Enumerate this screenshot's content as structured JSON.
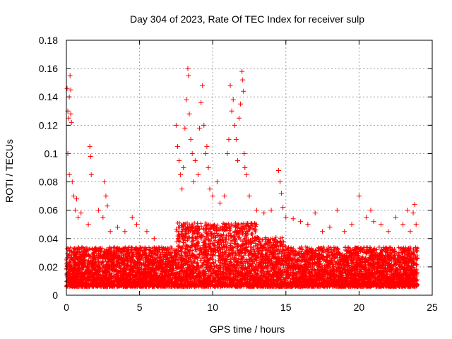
{
  "chart_data": {
    "type": "scatter",
    "title": "Day 304 of 2023, Rate Of TEC Index for receiver sulp",
    "xlabel": "GPS time / hours",
    "ylabel": "ROTI / TECUs",
    "xlim": [
      0,
      25
    ],
    "ylim": [
      0,
      0.18
    ],
    "x_ticks": [
      0,
      5,
      10,
      15,
      20,
      25
    ],
    "y_ticks": [
      0,
      0.02,
      0.04,
      0.06,
      0.08,
      0.1,
      0.12,
      0.14,
      0.16,
      0.18
    ],
    "x_tick_labels": [
      "0",
      "5",
      "10",
      "15",
      "20",
      "25"
    ],
    "y_tick_labels": [
      "0",
      "0.02",
      "0.04",
      "0.06",
      "0.08",
      "0.1",
      "0.12",
      "0.14",
      "0.16",
      "0.18"
    ],
    "grid": true,
    "marker": "+",
    "color": "#ff0000",
    "series": [
      {
        "points": [
          [
            0.05,
            0.146
          ],
          [
            0.1,
            0.13
          ],
          [
            0.15,
            0.125
          ],
          [
            0.2,
            0.14
          ],
          [
            0.25,
            0.155
          ],
          [
            0.3,
            0.145
          ],
          [
            0.3,
            0.128
          ],
          [
            0.35,
            0.122
          ],
          [
            0.1,
            0.1
          ],
          [
            0.2,
            0.085
          ],
          [
            0.4,
            0.08
          ],
          [
            0.5,
            0.07
          ],
          [
            0.6,
            0.06
          ],
          [
            0.7,
            0.068
          ],
          [
            0.8,
            0.055
          ],
          [
            1.0,
            0.058
          ],
          [
            1.6,
            0.105
          ],
          [
            1.65,
            0.098
          ],
          [
            1.7,
            0.085
          ],
          [
            1.5,
            0.05
          ],
          [
            2.2,
            0.06
          ],
          [
            2.5,
            0.055
          ],
          [
            2.6,
            0.08
          ],
          [
            2.7,
            0.07
          ],
          [
            2.8,
            0.063
          ],
          [
            3.0,
            0.045
          ],
          [
            3.5,
            0.048
          ],
          [
            4.0,
            0.045
          ],
          [
            4.5,
            0.055
          ],
          [
            4.8,
            0.05
          ],
          [
            5.5,
            0.045
          ],
          [
            6.0,
            0.04
          ],
          [
            7.5,
            0.12
          ],
          [
            7.6,
            0.105
          ],
          [
            7.7,
            0.095
          ],
          [
            7.8,
            0.085
          ],
          [
            7.9,
            0.075
          ],
          [
            8.0,
            0.09
          ],
          [
            8.1,
            0.118
          ],
          [
            8.2,
            0.138
          ],
          [
            8.3,
            0.16
          ],
          [
            8.35,
            0.155
          ],
          [
            8.4,
            0.128
          ],
          [
            8.5,
            0.11
          ],
          [
            8.6,
            0.1
          ],
          [
            8.7,
            0.08
          ],
          [
            8.8,
            0.095
          ],
          [
            9.0,
            0.085
          ],
          [
            9.1,
            0.118
          ],
          [
            9.2,
            0.136
          ],
          [
            9.3,
            0.148
          ],
          [
            9.4,
            0.12
          ],
          [
            9.5,
            0.1
          ],
          [
            9.6,
            0.105
          ],
          [
            9.7,
            0.09
          ],
          [
            9.8,
            0.075
          ],
          [
            10.0,
            0.07
          ],
          [
            10.3,
            0.08
          ],
          [
            10.5,
            0.065
          ],
          [
            10.8,
            0.07
          ],
          [
            11.0,
            0.1
          ],
          [
            11.1,
            0.11
          ],
          [
            11.2,
            0.148
          ],
          [
            11.3,
            0.13
          ],
          [
            11.4,
            0.138
          ],
          [
            11.5,
            0.12
          ],
          [
            11.6,
            0.11
          ],
          [
            11.7,
            0.095
          ],
          [
            11.8,
            0.125
          ],
          [
            11.9,
            0.135
          ],
          [
            12.0,
            0.158
          ],
          [
            12.05,
            0.152
          ],
          [
            12.1,
            0.144
          ],
          [
            12.15,
            0.1
          ],
          [
            12.2,
            0.09
          ],
          [
            12.3,
            0.085
          ],
          [
            12.5,
            0.07
          ],
          [
            13.0,
            0.06
          ],
          [
            13.5,
            0.058
          ],
          [
            14.0,
            0.06
          ],
          [
            14.5,
            0.088
          ],
          [
            14.6,
            0.08
          ],
          [
            14.7,
            0.072
          ],
          [
            14.8,
            0.062
          ],
          [
            15.0,
            0.055
          ],
          [
            15.5,
            0.054
          ],
          [
            16.0,
            0.052
          ],
          [
            16.5,
            0.05
          ],
          [
            17.0,
            0.058
          ],
          [
            17.5,
            0.045
          ],
          [
            18.0,
            0.048
          ],
          [
            18.5,
            0.06
          ],
          [
            19.0,
            0.045
          ],
          [
            19.5,
            0.05
          ],
          [
            20.0,
            0.07
          ],
          [
            20.5,
            0.055
          ],
          [
            20.8,
            0.06
          ],
          [
            21.0,
            0.052
          ],
          [
            21.5,
            0.05
          ],
          [
            22.0,
            0.045
          ],
          [
            22.5,
            0.055
          ],
          [
            23.0,
            0.05
          ],
          [
            23.3,
            0.06
          ],
          [
            23.5,
            0.045
          ],
          [
            23.7,
            0.058
          ],
          [
            23.8,
            0.064
          ],
          [
            23.9,
            0.05
          ]
        ]
      }
    ]
  }
}
